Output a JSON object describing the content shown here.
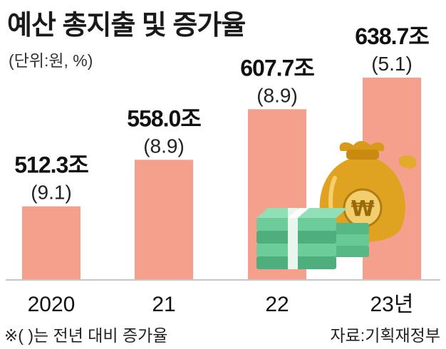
{
  "title": "예산 총지출 및 증가율",
  "unit_note": "(단위:원, %)",
  "footnote": "※(  )는 전년 대비 증가율",
  "source": "자료:기획재정부",
  "icons": {
    "money_bag": "money-bag-icon",
    "currency_symbol": "₩",
    "cash": "cash-stack-icon"
  },
  "colors": {
    "bar": "#f4a08d",
    "baseline": "#c8c8c8",
    "bag": "#e0a321",
    "cash": "#5ec28f"
  },
  "chart_data": {
    "type": "bar",
    "categories": [
      "2020",
      "21",
      "22",
      "23년"
    ],
    "values": [
      512.3,
      558.0,
      607.7,
      638.7
    ],
    "value_labels": [
      "512.3조",
      "558.0조",
      "607.7조",
      "638.7조"
    ],
    "growth_rates": [
      9.1,
      8.9,
      8.9,
      5.1
    ],
    "growth_labels": [
      "(9.1)",
      "(8.9)",
      "(8.9)",
      "(5.1)"
    ],
    "value_unit": "조원",
    "ylim": [
      440,
      645
    ]
  }
}
